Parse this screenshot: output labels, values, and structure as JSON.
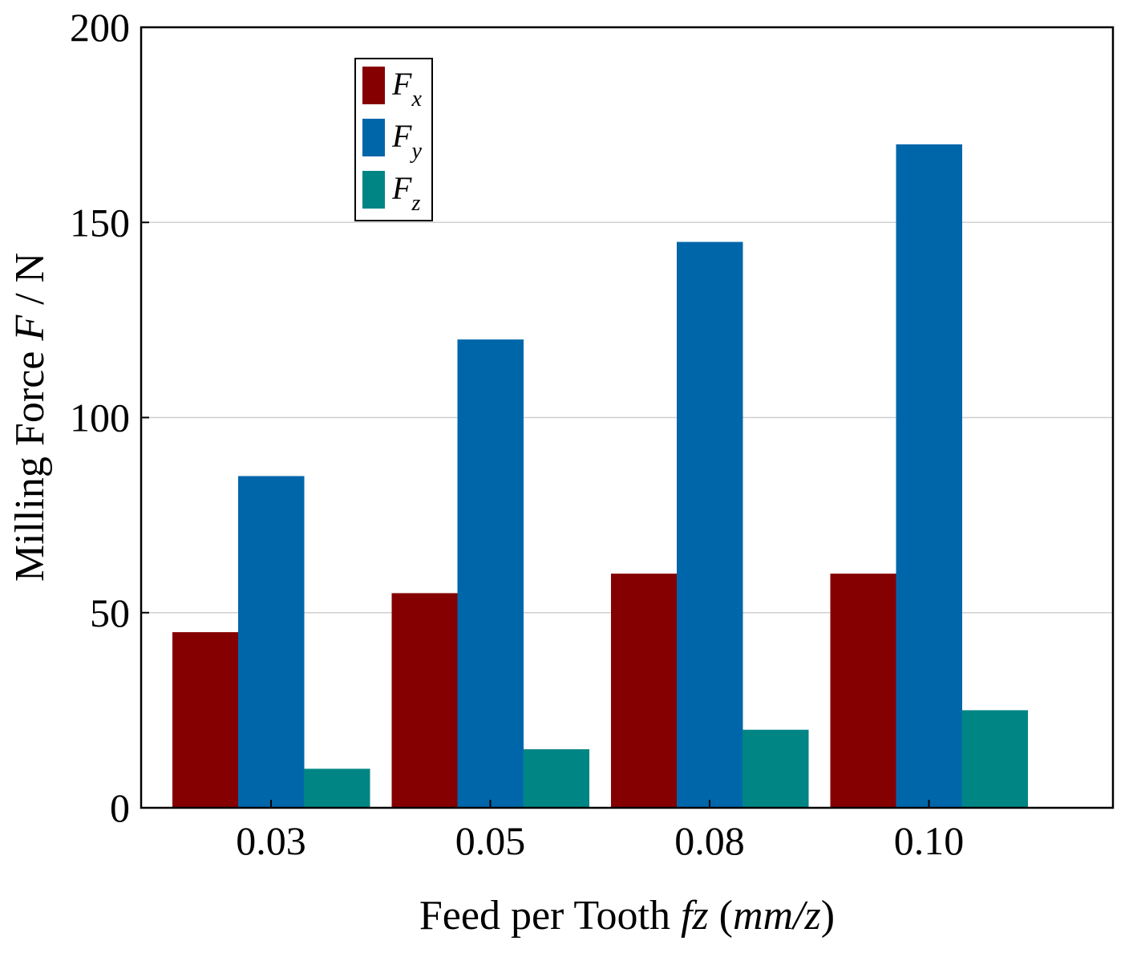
{
  "chart_data": {
    "type": "bar",
    "title": "",
    "categories": [
      "0.03",
      "0.05",
      "0.08",
      "0.10"
    ],
    "series": [
      {
        "name": "Fx",
        "base": "F",
        "sub": "x",
        "color": "#850000",
        "values": [
          45,
          55,
          60,
          60
        ]
      },
      {
        "name": "Fy",
        "base": "F",
        "sub": "y",
        "color": "#0066AA",
        "values": [
          85,
          120,
          145,
          170
        ]
      },
      {
        "name": "Fz",
        "base": "F",
        "sub": "z",
        "color": "#008585",
        "values": [
          10,
          15,
          20,
          25
        ]
      }
    ],
    "ylim": [
      0,
      200
    ],
    "yticks": [
      "0",
      "50",
      "100",
      "150",
      "200"
    ],
    "xlabel": {
      "part1": "Feed per Tooth ",
      "part2": "fz",
      "part3": " (",
      "part4": "mm/z",
      "part5": ")"
    },
    "ylabel": {
      "part1": "Milling Force ",
      "part2": "F",
      "part3": " / N"
    },
    "grid": "horizontal",
    "legend_position": "top-left"
  }
}
